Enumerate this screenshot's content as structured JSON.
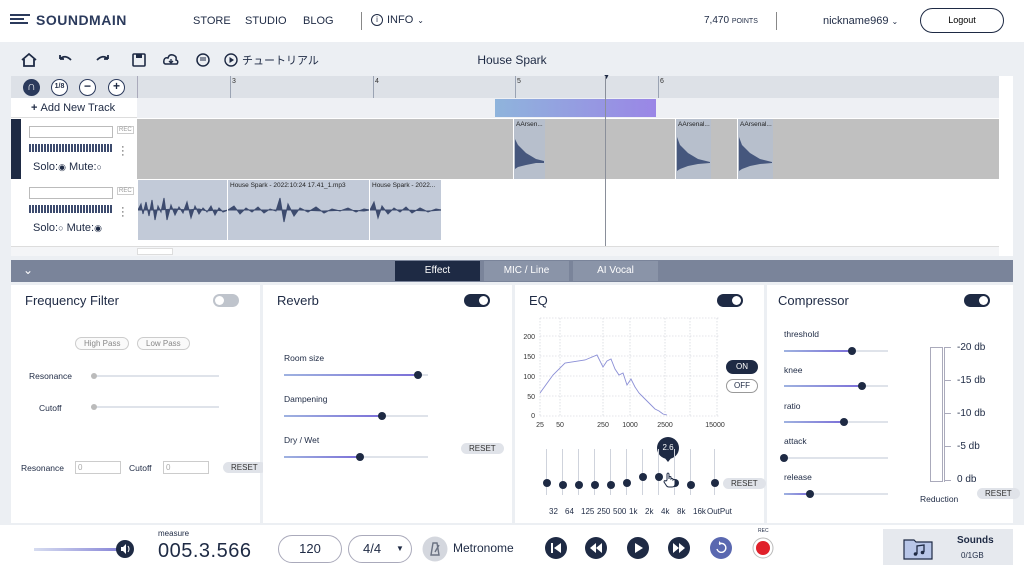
{
  "nav": {
    "logo": "SOUNDMAIN",
    "links": [
      "STORE",
      "STUDIO",
      "BLOG"
    ],
    "info": "INFO",
    "points": "7,470",
    "points_unit": "POINTS",
    "user": "nickname969",
    "logout": "Logout"
  },
  "toolbar": {
    "tutorial": "チュートリアル",
    "song_title": "House Spark"
  },
  "editor": {
    "snap": "1/8",
    "add_track": "Add New Track",
    "ruler_ticks": [
      "3",
      "4",
      "5",
      "6"
    ],
    "tracks": [
      {
        "solo": "Solo:",
        "mute": "Mute:",
        "rec": "REC",
        "clips": [
          "AArsen...",
          "AArsenal...",
          "AArsenal..."
        ]
      },
      {
        "solo": "Solo:",
        "mute": "Mute:",
        "rec": "REC",
        "clips": [
          "House Spark - 2022:10:24 17.41_1.mp3",
          "House Spark - 2022..."
        ]
      }
    ]
  },
  "tabs": [
    "Effect",
    "MIC / Line",
    "AI Vocal"
  ],
  "freq_filter": {
    "title": "Frequency Filter",
    "enabled": false,
    "high_pass": "High Pass",
    "low_pass": "Low Pass",
    "resonance_label": "Resonance",
    "cutoff_label": "Cutoff",
    "resonance_value": "0",
    "cutoff_value": "0",
    "reset": "RESET"
  },
  "reverb": {
    "title": "Reverb",
    "enabled": true,
    "room_size_label": "Room size",
    "room_size": 0.93,
    "dampening_label": "Dampening",
    "dampening": 0.68,
    "drywet_label": "Dry / Wet",
    "drywet": 0.53,
    "reset": "RESET"
  },
  "eq": {
    "title": "EQ",
    "enabled": true,
    "on": "ON",
    "off": "OFF",
    "y_ticks": [
      "200",
      "150",
      "100",
      "50",
      "0"
    ],
    "x_ticks": [
      "25",
      "50",
      "250",
      "1000",
      "2500",
      "15000"
    ],
    "bands": [
      "32",
      "64",
      "125",
      "250",
      "500",
      "1k",
      "2k",
      "4k",
      "8k",
      "16k",
      "OutPut"
    ],
    "tooltip": "2.6",
    "reset": "RESET"
  },
  "compressor": {
    "title": "Compressor",
    "enabled": true,
    "threshold_label": "threshold",
    "threshold": 0.65,
    "knee_label": "knee",
    "knee": 0.75,
    "ratio_label": "ratio",
    "ratio": 0.58,
    "attack_label": "attack",
    "attack": 0.0,
    "release_label": "release",
    "release": 0.25,
    "db_ticks": [
      "-20 db",
      "-15 db",
      "-10 db",
      "-5 db",
      "0 db"
    ],
    "reduction": "Reduction",
    "reset": "RESET"
  },
  "transport": {
    "measure_label": "measure",
    "measure": "005.3.566",
    "bpm": "120",
    "time_sig": "4/4",
    "metronome": "Metronome",
    "rec": "REC",
    "sounds": "Sounds",
    "storage": "0/1GB"
  }
}
